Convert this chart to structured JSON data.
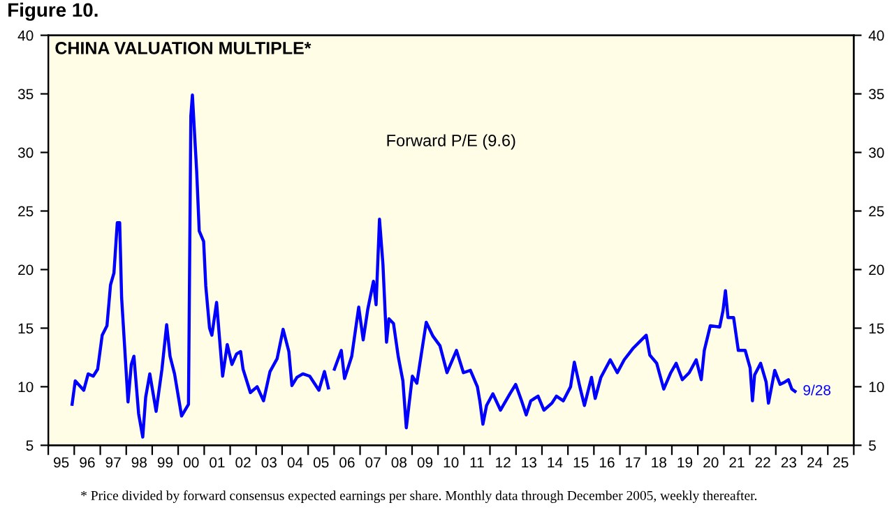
{
  "chart_data": {
    "type": "line",
    "title": "Figure 10.",
    "subtitle": "CHINA VALUATION MULTIPLE*",
    "annotations": [
      "* Price divided by forward consensus expected earnings per share. Monthly data through December 2005, weekly thereafter.",
      {
        "text": "9/28",
        "x": "2023-09-28",
        "y": 9.6
      }
    ],
    "series": [
      {
        "name": "Forward P/E (9.6)",
        "color": "#0000ff",
        "x": [
          "1995-12-02",
          "1996-01-15",
          "1996-05-14",
          "1996-07-15",
          "1996-09-24",
          "1996-11-25",
          "1997-01-28",
          "1997-04-05",
          "1997-05-25",
          "1997-07-12",
          "1997-08-28",
          "1997-10-01",
          "1997-10-28",
          "1998-01-26",
          "1998-03-13",
          "1998-04-19",
          "1998-06-24",
          "1998-08-21",
          "1998-10-01",
          "1998-11-28",
          "1999-02-25",
          "1999-05-18",
          "1999-07-23",
          "1999-09-09",
          "1999-11-11",
          "2000-02-18",
          "2000-05-25",
          "2000-06-27",
          "2000-07-19",
          "2000-09-17",
          "2000-10-23",
          "2000-12-24",
          "2001-01-23",
          "2001-03-17",
          "2001-04-19",
          "2001-06-24",
          "2001-09-17",
          "2001-11-21",
          "2002-01-26",
          "2002-04-01",
          "2002-05-28",
          "2002-07-01",
          "2002-10-12",
          "2003-01-15",
          "2003-04-15",
          "2003-07-15",
          "2003-10-23",
          "2004-01-15",
          "2004-04-05",
          "2004-05-18",
          "2004-07-28",
          "2004-10-19",
          "2005-01-23",
          "2005-06-02",
          "2005-08-18",
          "2005-10-12",
          "2005-11-28",
          "2006-01-05",
          "2006-04-12",
          "2006-05-28",
          "2006-09-06",
          "2006-12-13",
          "2007-02-14",
          "2007-04-19",
          "2007-07-08",
          "2007-08-14",
          "2007-10-01",
          "2007-11-18",
          "2008-01-08",
          "2008-02-11",
          "2008-04-15",
          "2008-06-20",
          "2008-08-25",
          "2008-10-12",
          "2009-01-05",
          "2009-03-09",
          "2009-07-19",
          "2009-10-23",
          "2010-01-28",
          "2010-05-07",
          "2010-09-17",
          "2010-12-24",
          "2011-04-01",
          "2011-07-08",
          "2011-08-11",
          "2011-09-24",
          "2011-11-14",
          "2012-02-11",
          "2012-05-28",
          "2012-10-08",
          "2012-12-27",
          "2013-03-20",
          "2013-05-25",
          "2013-07-28",
          "2013-11-07",
          "2014-01-28",
          "2014-05-21",
          "2014-07-23",
          "2014-10-28",
          "2015-02-07",
          "2015-04-01",
          "2015-06-17",
          "2015-08-21",
          "2015-11-28",
          "2016-01-19",
          "2016-04-08",
          "2016-08-18",
          "2016-11-25",
          "2017-03-02",
          "2017-07-08",
          "2017-10-15",
          "2018-01-05",
          "2018-02-25",
          "2018-06-02",
          "2018-09-09",
          "2018-12-17",
          "2019-03-02",
          "2019-05-28",
          "2019-09-02",
          "2019-12-09",
          "2020-02-18",
          "2020-04-01",
          "2020-06-24",
          "2020-11-03",
          "2020-12-20",
          "2021-01-23",
          "2021-02-28",
          "2021-05-18",
          "2021-07-23",
          "2021-10-28",
          "2022-01-05",
          "2022-02-07",
          "2022-03-09",
          "2022-06-02",
          "2022-08-18",
          "2022-09-20",
          "2022-12-17",
          "2023-03-02",
          "2023-05-07",
          "2023-06-27",
          "2023-08-14",
          "2023-09-28"
        ],
        "values": [
          8.5,
          10.5,
          9.7,
          11.1,
          10.9,
          11.5,
          14.4,
          15.2,
          18.7,
          19.7,
          24.0,
          24.0,
          17.6,
          8.7,
          11.9,
          12.6,
          7.7,
          5.7,
          9.1,
          11.1,
          7.9,
          11.5,
          15.3,
          12.6,
          11.1,
          7.5,
          8.5,
          33.1,
          34.9,
          28.4,
          23.3,
          22.4,
          18.6,
          15.0,
          14.4,
          17.2,
          10.9,
          13.6,
          11.9,
          12.8,
          13.0,
          11.5,
          9.5,
          10.0,
          8.8,
          11.3,
          12.4,
          14.9,
          13.0,
          10.1,
          10.8,
          11.1,
          10.9,
          9.7,
          11.3,
          9.9,
          null,
          11.5,
          13.1,
          10.7,
          12.6,
          16.8,
          14.0,
          16.6,
          19.0,
          17.0,
          24.3,
          20.5,
          13.8,
          15.8,
          15.4,
          12.6,
          10.5,
          6.5,
          10.9,
          10.3,
          15.5,
          14.3,
          13.5,
          11.2,
          13.1,
          11.2,
          11.4,
          10.0,
          8.8,
          6.8,
          8.4,
          9.4,
          8.0,
          9.4,
          10.2,
          8.8,
          7.6,
          8.8,
          9.2,
          8.0,
          8.6,
          9.2,
          8.8,
          10.0,
          12.1,
          10.0,
          8.4,
          10.8,
          9.0,
          10.8,
          12.3,
          11.2,
          12.3,
          13.3,
          13.9,
          14.4,
          12.7,
          12.0,
          9.8,
          11.2,
          12.0,
          10.6,
          11.2,
          12.3,
          10.6,
          13.1,
          15.2,
          15.1,
          16.5,
          18.2,
          15.9,
          15.9,
          13.1,
          13.1,
          11.6,
          8.8,
          11.0,
          12.0,
          10.4,
          8.6,
          11.4,
          10.2,
          10.4,
          10.6,
          9.8,
          9.6
        ]
      }
    ],
    "xlim": [
      "1995-01-01",
      "2026-01-01"
    ],
    "xticks": [
      {
        "value": "1995-01-01",
        "label": null
      },
      {
        "value": "1995-07-02",
        "label": "95"
      },
      {
        "value": "1996-01-01",
        "label": null
      },
      {
        "value": "1996-07-02",
        "label": "96"
      },
      {
        "value": "1997-01-01",
        "label": null
      },
      {
        "value": "1997-07-02",
        "label": "97"
      },
      {
        "value": "1998-01-01",
        "label": null
      },
      {
        "value": "1998-07-02",
        "label": "98"
      },
      {
        "value": "1999-01-01",
        "label": null
      },
      {
        "value": "1999-07-02",
        "label": "99"
      },
      {
        "value": "2000-01-01",
        "label": null
      },
      {
        "value": "2000-07-02",
        "label": "00"
      },
      {
        "value": "2001-01-01",
        "label": null
      },
      {
        "value": "2001-07-02",
        "label": "01"
      },
      {
        "value": "2002-01-01",
        "label": null
      },
      {
        "value": "2002-07-02",
        "label": "02"
      },
      {
        "value": "2003-01-01",
        "label": null
      },
      {
        "value": "2003-07-02",
        "label": "03"
      },
      {
        "value": "2004-01-01",
        "label": null
      },
      {
        "value": "2004-07-02",
        "label": "04"
      },
      {
        "value": "2005-01-01",
        "label": null
      },
      {
        "value": "2005-07-02",
        "label": "05"
      },
      {
        "value": "2006-01-01",
        "label": null
      },
      {
        "value": "2006-07-02",
        "label": "06"
      },
      {
        "value": "2007-01-01",
        "label": null
      },
      {
        "value": "2007-07-02",
        "label": "07"
      },
      {
        "value": "2008-01-01",
        "label": null
      },
      {
        "value": "2008-07-02",
        "label": "08"
      },
      {
        "value": "2009-01-01",
        "label": null
      },
      {
        "value": "2009-07-02",
        "label": "09"
      },
      {
        "value": "2010-01-01",
        "label": null
      },
      {
        "value": "2010-07-02",
        "label": "10"
      },
      {
        "value": "2011-01-01",
        "label": null
      },
      {
        "value": "2011-07-02",
        "label": "11"
      },
      {
        "value": "2012-01-01",
        "label": null
      },
      {
        "value": "2012-07-02",
        "label": "12"
      },
      {
        "value": "2013-01-01",
        "label": null
      },
      {
        "value": "2013-07-02",
        "label": "13"
      },
      {
        "value": "2014-01-01",
        "label": null
      },
      {
        "value": "2014-07-02",
        "label": "14"
      },
      {
        "value": "2015-01-01",
        "label": null
      },
      {
        "value": "2015-07-02",
        "label": "15"
      },
      {
        "value": "2016-01-01",
        "label": null
      },
      {
        "value": "2016-07-02",
        "label": "16"
      },
      {
        "value": "2017-01-01",
        "label": null
      },
      {
        "value": "2017-07-02",
        "label": "17"
      },
      {
        "value": "2018-01-01",
        "label": null
      },
      {
        "value": "2018-07-02",
        "label": "18"
      },
      {
        "value": "2019-01-01",
        "label": null
      },
      {
        "value": "2019-07-02",
        "label": "19"
      },
      {
        "value": "2020-01-01",
        "label": null
      },
      {
        "value": "2020-07-02",
        "label": "20"
      },
      {
        "value": "2021-01-01",
        "label": null
      },
      {
        "value": "2021-07-02",
        "label": "21"
      },
      {
        "value": "2022-01-01",
        "label": null
      },
      {
        "value": "2022-07-02",
        "label": "22"
      },
      {
        "value": "2023-01-01",
        "label": null
      },
      {
        "value": "2023-07-02",
        "label": "23"
      },
      {
        "value": "2024-01-01",
        "label": null
      },
      {
        "value": "2024-07-02",
        "label": "24"
      },
      {
        "value": "2025-01-01",
        "label": null
      },
      {
        "value": "2025-07-02",
        "label": "25"
      },
      {
        "value": "2026-01-01",
        "label": null
      }
    ],
    "ylim": [
      5,
      40
    ],
    "yticks": [
      5,
      10,
      15,
      20,
      25,
      30,
      35,
      40
    ],
    "y2lim": [
      5,
      40
    ],
    "y2ticks": [
      5,
      10,
      15,
      20,
      25,
      30,
      35,
      40
    ],
    "grid": false,
    "legend": false,
    "marker": "none",
    "line_style": "solid"
  }
}
